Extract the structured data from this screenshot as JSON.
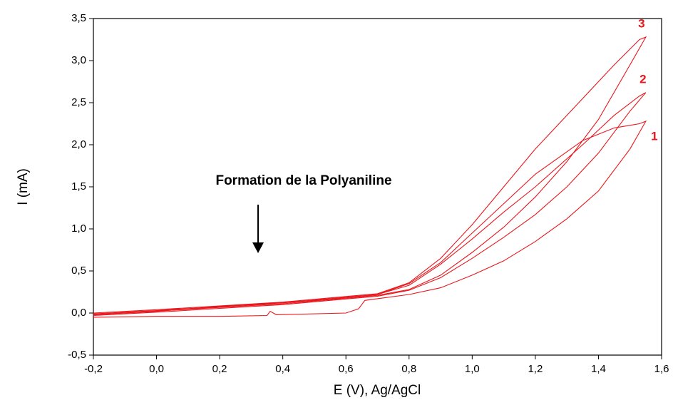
{
  "chart_data": {
    "type": "line",
    "xlabel": "E (V), Ag/AgCl",
    "ylabel": "I (mA)",
    "annotation": "Formation de la Polyaniline",
    "xlim": [
      -0.2,
      1.6
    ],
    "ylim": [
      -0.5,
      3.5
    ],
    "xticks": [
      {
        "value": -0.2,
        "label": "-0,2"
      },
      {
        "value": 0,
        "label": "0,0"
      },
      {
        "value": 0.2,
        "label": "0,2"
      },
      {
        "value": 0.4,
        "label": "0,4"
      },
      {
        "value": 0.6,
        "label": "0,6"
      },
      {
        "value": 0.8,
        "label": "0,8"
      },
      {
        "value": 1.0,
        "label": "1,0"
      },
      {
        "value": 1.2,
        "label": "1,2"
      },
      {
        "value": 1.4,
        "label": "1,4"
      },
      {
        "value": 1.6,
        "label": "1,6"
      }
    ],
    "yticks": [
      {
        "value": -0.5,
        "label": "-0,5"
      },
      {
        "value": 0,
        "label": "0,0"
      },
      {
        "value": 0.5,
        "label": "0,5"
      },
      {
        "value": 1.0,
        "label": "1,0"
      },
      {
        "value": 1.5,
        "label": "1,5"
      },
      {
        "value": 2.0,
        "label": "2,0"
      },
      {
        "value": 2.5,
        "label": "2,5"
      },
      {
        "value": 3.0,
        "label": "3,0"
      },
      {
        "value": 3.5,
        "label": "3,5"
      }
    ],
    "series": [
      {
        "name": "1",
        "color": "#e8161c",
        "x": [
          -0.2,
          0,
          0.2,
          0.35,
          0.36,
          0.38,
          0.6,
          0.64,
          0.66,
          0.8,
          0.9,
          1.0,
          1.1,
          1.2,
          1.3,
          1.4,
          1.5,
          1.55,
          1.53,
          1.45,
          1.35,
          1.2,
          1.1,
          1.0,
          0.9,
          0.8,
          0.7,
          0.5,
          0.2,
          0,
          -0.2
        ],
        "values": [
          -0.05,
          -0.04,
          -0.04,
          -0.03,
          0.02,
          -0.02,
          0.0,
          0.05,
          0.15,
          0.22,
          0.3,
          0.45,
          0.62,
          0.85,
          1.12,
          1.45,
          1.95,
          2.28,
          2.25,
          2.2,
          2.05,
          1.65,
          1.3,
          0.95,
          0.6,
          0.35,
          0.22,
          0.15,
          0.08,
          0.02,
          -0.02
        ]
      },
      {
        "name": "2",
        "color": "#e8161c",
        "x": [
          -0.2,
          0,
          0.4,
          0.7,
          0.8,
          0.9,
          1.0,
          1.1,
          1.2,
          1.3,
          1.4,
          1.5,
          1.55,
          1.53,
          1.45,
          1.35,
          1.2,
          1.1,
          1.0,
          0.9,
          0.8,
          0.7,
          0.4,
          0,
          -0.2
        ],
        "values": [
          -0.03,
          0.01,
          0.1,
          0.2,
          0.27,
          0.42,
          0.65,
          0.9,
          1.17,
          1.5,
          1.9,
          2.4,
          2.62,
          2.58,
          2.35,
          2.0,
          1.5,
          1.2,
          0.88,
          0.58,
          0.33,
          0.22,
          0.12,
          0.03,
          -0.01
        ]
      },
      {
        "name": "3",
        "color": "#e8161c",
        "x": [
          -0.2,
          0.4,
          0.7,
          0.8,
          0.9,
          1.0,
          1.1,
          1.2,
          1.3,
          1.4,
          1.5,
          1.55,
          1.53,
          1.45,
          1.35,
          1.2,
          1.1,
          1.0,
          0.9,
          0.8,
          0.7,
          0.4,
          0,
          -0.2
        ],
        "values": [
          -0.02,
          0.11,
          0.21,
          0.28,
          0.45,
          0.72,
          1.02,
          1.38,
          1.8,
          2.3,
          2.95,
          3.28,
          3.25,
          2.95,
          2.55,
          1.95,
          1.5,
          1.05,
          0.65,
          0.36,
          0.23,
          0.13,
          0.04,
          0.0
        ]
      }
    ]
  }
}
